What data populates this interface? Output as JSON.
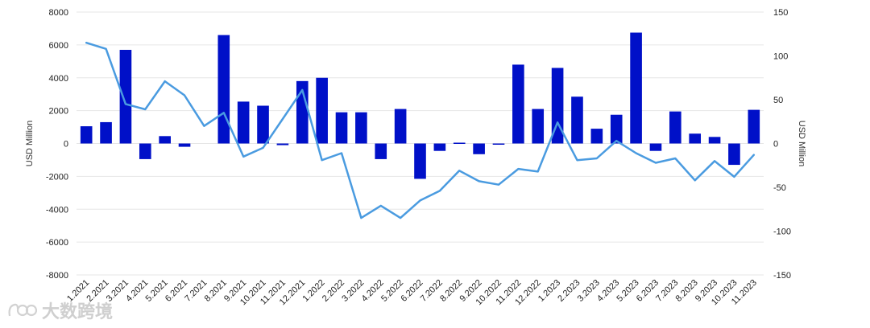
{
  "chart_data": {
    "type": "bar",
    "categories": [
      "1.2021",
      "2.2021",
      "3.2021",
      "4.2021",
      "5.2021",
      "6.2021",
      "7.2021",
      "8.2021",
      "9.2021",
      "10.2021",
      "11.2021",
      "12.2021",
      "1.2022",
      "2.2022",
      "3.2022",
      "4.2022",
      "5.2022",
      "6.2022",
      "7.2022",
      "8.2022",
      "9.2022",
      "10.2022",
      "11.2022",
      "12.2022",
      "1.2023",
      "2.2023",
      "3.2023",
      "4.2023",
      "5.2023",
      "6.2023",
      "7.2023",
      "8.2023",
      "9.2023",
      "10.2023",
      "11.2023"
    ],
    "series": [
      {
        "type": "bar",
        "axis": "left",
        "color": "#0010c8",
        "values": [
          1050,
          1300,
          5700,
          -950,
          450,
          -200,
          0,
          6600,
          2550,
          2300,
          -100,
          3800,
          4000,
          1900,
          1900,
          -950,
          2100,
          -2150,
          -450,
          50,
          -650,
          -50,
          4800,
          2100,
          4600,
          2850,
          900,
          1750,
          6750,
          -450,
          1950,
          600,
          400,
          -1300,
          2050
        ]
      },
      {
        "type": "line",
        "axis": "right",
        "color": "#4a9be0",
        "values": [
          115,
          108,
          45,
          39,
          71,
          55,
          20,
          35,
          -15,
          -5,
          28,
          61,
          -19,
          -11,
          -85,
          -71,
          -85,
          -65,
          -54,
          -31,
          -43,
          -47,
          -29,
          -32,
          24,
          -19,
          -17,
          3,
          -11,
          -22,
          -17,
          -42,
          -20,
          -38,
          -13
        ]
      }
    ],
    "ylabel": "USD Million",
    "ylabel_right": "USD Million",
    "ylim": [
      -8000,
      8000
    ],
    "y_ticks": [
      "8000",
      "6000",
      "4000",
      "2000",
      "0",
      "-2000",
      "-4000",
      "-6000",
      "-8000"
    ],
    "ylim_right": [
      -150,
      150
    ],
    "y_ticks_right": [
      "150",
      "100",
      "50",
      "0",
      "-50",
      "-100",
      "-150"
    ],
    "grid": true
  },
  "watermark": {
    "text": "大数跨境"
  }
}
